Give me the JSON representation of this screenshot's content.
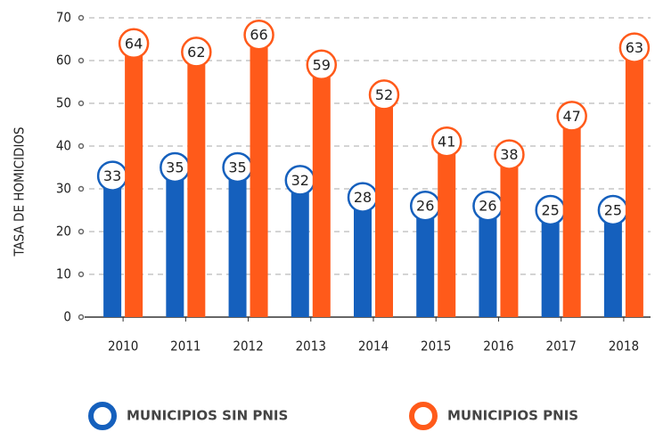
{
  "chart_data": {
    "type": "bar",
    "y_label": "TASA DE HOMICIDIOS",
    "categories": [
      "2010",
      "2011",
      "2012",
      "2013",
      "2014",
      "2015",
      "2016",
      "2017",
      "2018"
    ],
    "series": [
      {
        "name": "MUNICIPIOS SIN PNIS",
        "color": "#1560bd",
        "values": [
          33,
          35,
          35,
          32,
          28,
          26,
          26,
          25,
          25
        ]
      },
      {
        "name": "MUNICIPIOS PNIS",
        "color": "#ff5a1a",
        "values": [
          64,
          62,
          66,
          59,
          52,
          41,
          38,
          47,
          63
        ]
      }
    ],
    "ylim": [
      0,
      70
    ],
    "yticks": [
      0,
      10,
      20,
      30,
      40,
      50,
      60,
      70
    ],
    "grid": true
  }
}
